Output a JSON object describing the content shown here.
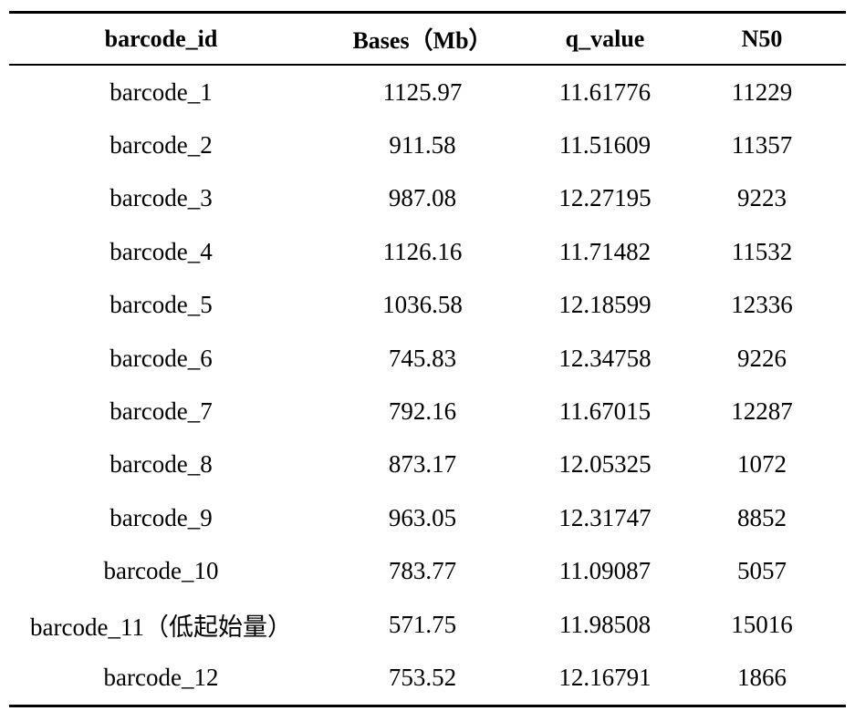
{
  "table": {
    "headers": [
      "barcode_id",
      "Bases（Mb）",
      "q_value",
      "N50"
    ],
    "rows": [
      [
        "barcode_1",
        "1125.97",
        "11.61776",
        "11229"
      ],
      [
        "barcode_2",
        "911.58",
        "11.51609",
        "11357"
      ],
      [
        "barcode_3",
        "987.08",
        "12.27195",
        "9223"
      ],
      [
        "barcode_4",
        "1126.16",
        "11.71482",
        "11532"
      ],
      [
        "barcode_5",
        "1036.58",
        "12.18599",
        "12336"
      ],
      [
        "barcode_6",
        "745.83",
        "12.34758",
        "9226"
      ],
      [
        "barcode_7",
        "792.16",
        "11.67015",
        "12287"
      ],
      [
        "barcode_8",
        "873.17",
        "12.05325",
        "1072"
      ],
      [
        "barcode_9",
        "963.05",
        "12.31747",
        "8852"
      ],
      [
        "barcode_10",
        "783.77",
        "11.09087",
        "5057"
      ],
      [
        "barcode_11（低起始量）",
        "571.75",
        "11.98508",
        "15016"
      ],
      [
        "barcode_12",
        "753.52",
        "12.16791",
        "1866"
      ]
    ]
  }
}
